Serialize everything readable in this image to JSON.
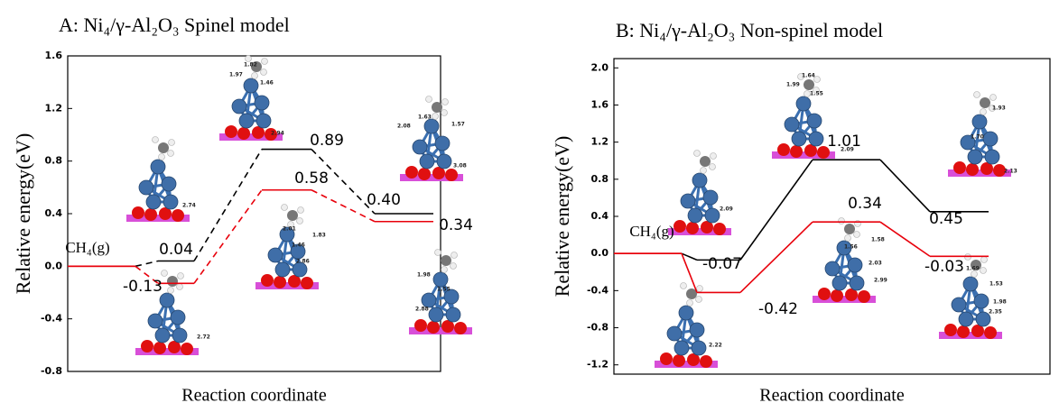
{
  "chart_data": [
    {
      "type": "energy-profile",
      "title": "A: Ni₄/γ-Al₂O₃ Spinel model",
      "y_label": "Relative energy(eV)",
      "x_label": "Reaction coordinate",
      "categories": [
        "CH₄(g)",
        null,
        null,
        null
      ],
      "line_style": "dashed",
      "series": [
        {
          "name": null,
          "color": "#000000",
          "values": [
            0,
            0.04,
            0.89,
            0.4
          ],
          "value_labels": [
            null,
            "0.04",
            "0.89",
            "0.40"
          ]
        },
        {
          "name": null,
          "color": "#e8000b",
          "values": [
            0,
            -0.13,
            0.58,
            0.34
          ],
          "value_labels": [
            null,
            "-0.13",
            "0.58",
            "0.34"
          ]
        }
      ],
      "ylim": [
        -0.8,
        1.6
      ],
      "yticks": [
        {
          "value": 1.6,
          "label": "1.6"
        },
        {
          "value": 1.2,
          "label": "1.2"
        },
        {
          "value": 0.8,
          "label": "0.8"
        },
        {
          "value": 0.4,
          "label": "0.4"
        },
        {
          "value": 0,
          "label": "0.0"
        },
        {
          "value": -0.4,
          "label": "-0.4"
        },
        {
          "value": -0.8,
          "label": "-0.8"
        }
      ],
      "annotations": [
        "1.82",
        "1.97",
        "1.46",
        "2.94",
        "2.74",
        "1.63",
        "2.08",
        "1.57",
        "3.08",
        "2.01",
        "1.46",
        "1.83",
        "2.86",
        "1.98",
        "1.55",
        "2.88",
        "2.72"
      ]
    },
    {
      "type": "energy-profile",
      "title": "B: Ni₄/γ-Al₂O₃ Non-spinel model",
      "y_label": "Relative energy(eV)",
      "x_label": "Reaction coordinate",
      "categories": [
        "CH₄(g)",
        null,
        null,
        null
      ],
      "line_style": "solid",
      "series": [
        {
          "name": null,
          "color": "#000000",
          "values": [
            0,
            -0.07,
            1.01,
            0.45
          ],
          "value_labels": [
            null,
            "-0.07",
            "1.01",
            "0.45"
          ]
        },
        {
          "name": null,
          "color": "#e8000b",
          "values": [
            0,
            -0.42,
            0.34,
            -0.03
          ],
          "value_labels": [
            null,
            "-0.42",
            "0.34",
            "-0.03"
          ]
        }
      ],
      "ylim": [
        -1.3,
        2.1
      ],
      "yticks": [
        {
          "value": 2,
          "label": "2.0"
        },
        {
          "value": 1.6,
          "label": "1.6"
        },
        {
          "value": 1.2,
          "label": "1.2"
        },
        {
          "value": 0.8,
          "label": "0.8"
        },
        {
          "value": 0.4,
          "label": "0.4"
        },
        {
          "value": 0,
          "label": "0.0"
        },
        {
          "value": -0.4,
          "label": "-0.4"
        },
        {
          "value": -0.8,
          "label": "-0.8"
        },
        {
          "value": -1.2,
          "label": "-1.2"
        }
      ],
      "annotations": [
        "1.64",
        "1.99",
        "1.55",
        "2.09",
        "2.09",
        "1.93",
        "1.70",
        "2.13",
        "1.58",
        "1.56",
        "2.03",
        "2.99",
        "1.69",
        "1.53",
        "1.98",
        "2.35",
        "2.22"
      ]
    }
  ]
}
